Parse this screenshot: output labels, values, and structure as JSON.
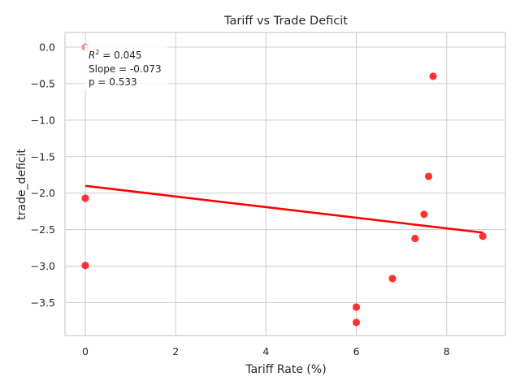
{
  "chart_data": {
    "type": "scatter",
    "title": "Tariff vs Trade Deficit",
    "xlabel": "Tariff Rate (%)",
    "ylabel": "trade_deficit",
    "xlim": [
      -0.45,
      9.3
    ],
    "ylim": [
      -3.95,
      0.2
    ],
    "xticks": [
      0,
      2,
      4,
      6,
      8
    ],
    "yticks": [
      0.0,
      -0.5,
      -1.0,
      -1.5,
      -2.0,
      -2.5,
      -3.0,
      -3.5
    ],
    "xtick_labels": [
      "0",
      "2",
      "4",
      "6",
      "8"
    ],
    "ytick_labels": [
      "0.0",
      "−0.5",
      "−1.0",
      "−1.5",
      "−2.0",
      "−2.5",
      "−3.0",
      "−3.5"
    ],
    "grid": true,
    "point_color": "#ff0000",
    "highlight_color": "#ff8a8a",
    "line_color": "#ff0000",
    "points": [
      {
        "x": 0.0,
        "y": 0.0,
        "highlight": true
      },
      {
        "x": 0.0,
        "y": -2.07
      },
      {
        "x": 0.0,
        "y": -2.99
      },
      {
        "x": 6.0,
        "y": -3.56
      },
      {
        "x": 6.0,
        "y": -3.77
      },
      {
        "x": 6.8,
        "y": -3.17
      },
      {
        "x": 7.3,
        "y": -2.62
      },
      {
        "x": 7.5,
        "y": -2.29
      },
      {
        "x": 7.6,
        "y": -1.77
      },
      {
        "x": 7.7,
        "y": -0.4
      },
      {
        "x": 8.8,
        "y": -2.59
      }
    ],
    "regression": {
      "x": [
        0.0,
        8.8
      ],
      "y": [
        -1.9,
        -2.54
      ]
    },
    "annotation": {
      "r2_label": "R",
      "r2_sup": "2",
      "r2_value": " = 0.045",
      "slope": "Slope = -0.073",
      "p": "p = 0.533"
    }
  }
}
